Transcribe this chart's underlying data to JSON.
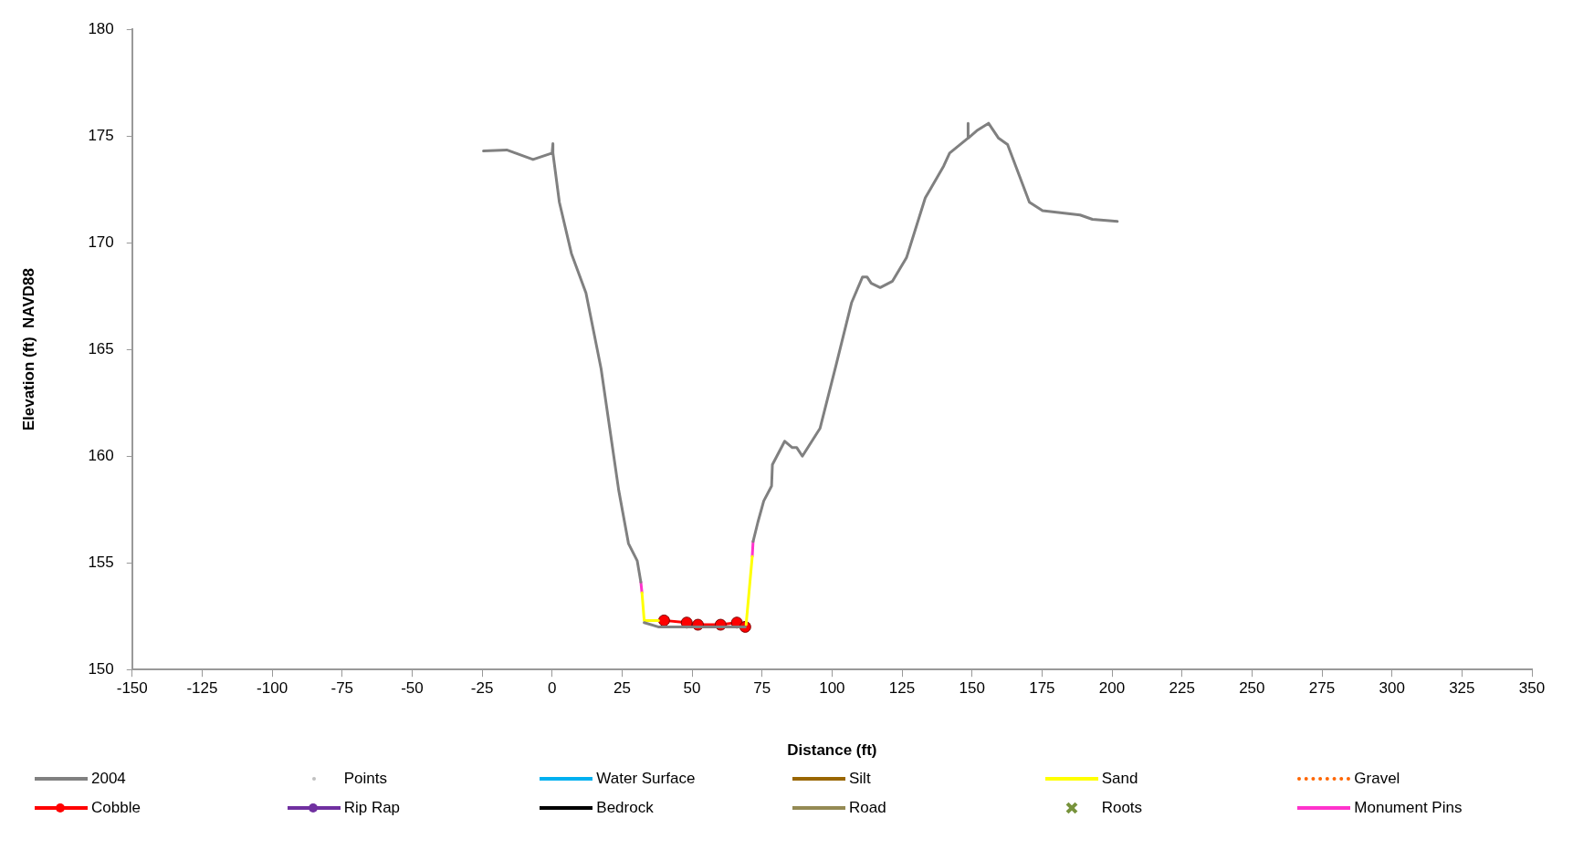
{
  "chart_data": {
    "type": "line",
    "xlabel": "Distance (ft)",
    "ylabel": "Elevation (ft)  NAVD88",
    "xlim": [
      -150,
      350
    ],
    "xticks": [
      -150,
      -125,
      -100,
      -75,
      -50,
      -25,
      0,
      25,
      50,
      75,
      100,
      125,
      150,
      175,
      200,
      225,
      250,
      275,
      300,
      325,
      350
    ],
    "ylim": [
      150,
      180
    ],
    "yticks": [
      150,
      155,
      160,
      165,
      170,
      175,
      180
    ],
    "grid": false,
    "legend": "bottom",
    "series": [
      {
        "name": "2004",
        "color": "#808080",
        "marker": "none",
        "x": [
          -24.5,
          -16.2,
          -6.8,
          0.0,
          0.3,
          0.3,
          2.6,
          6.9,
          12.1,
          17.5,
          23.8,
          27.3,
          30.4,
          31.7,
          null,
          32.9,
          37.9,
          58.3,
          69.0,
          null,
          71.8,
          73.5,
          75.6,
          78.4,
          78.7,
          83.1,
          85.8,
          87.4,
          89.4,
          95.7,
          101.5,
          107.0,
          110.9,
          112.5,
          114.0,
          117.2,
          121.6,
          126.6,
          133.3,
          139.9,
          142.0,
          148.5,
          148.5,
          148.7,
          151.7,
          155.9,
          159.5,
          162.7,
          170.5,
          175.2,
          188.6,
          193.0,
          201.9
        ],
        "values": [
          174.3,
          174.35,
          173.9,
          174.2,
          174.65,
          174.2,
          171.9,
          169.5,
          167.65,
          164.1,
          158.4,
          155.9,
          155.1,
          154.1,
          null,
          152.2,
          152.0,
          152.0,
          152.0,
          null,
          156.0,
          156.9,
          157.9,
          158.6,
          159.6,
          160.7,
          160.4,
          160.4,
          160.0,
          161.3,
          164.3,
          167.2,
          168.4,
          168.4,
          168.1,
          167.9,
          168.2,
          169.3,
          172.1,
          173.6,
          174.2,
          174.9,
          175.6,
          174.9,
          175.25,
          175.6,
          174.9,
          174.6,
          171.9,
          171.5,
          171.3,
          171.1,
          171.0
        ]
      },
      {
        "name": "Points",
        "color": "#c0c0c0",
        "marker": "circle",
        "line_style": "none"
      },
      {
        "name": "Water Surface",
        "color": "#00b0f0",
        "marker": "none"
      },
      {
        "name": "Silt",
        "color": "#996600",
        "marker": "none"
      },
      {
        "name": "Sand",
        "color": "#ffff00",
        "marker": "none",
        "x": [
          32.1,
          32.9,
          38.0,
          null,
          69.3,
          71.5
        ],
        "values": [
          153.6,
          152.3,
          152.3,
          null,
          152.1,
          155.3
        ]
      },
      {
        "name": "Gravel",
        "color": "#ff6600",
        "marker": "none",
        "line_style": "dotted"
      },
      {
        "name": "Cobble",
        "color": "#ff0000",
        "marker": "circle",
        "x": [
          40.0,
          48.1,
          52.1,
          60.2,
          66.0,
          69.0
        ],
        "values": [
          152.3,
          152.2,
          152.1,
          152.1,
          152.2,
          152.0
        ]
      },
      {
        "name": "Rip Rap",
        "color": "#7030a0",
        "marker": "circle"
      },
      {
        "name": "Bedrock",
        "color": "#000000",
        "marker": "none"
      },
      {
        "name": "Road",
        "color": "#948a54",
        "marker": "none"
      },
      {
        "name": "Roots",
        "color": "#77933c",
        "marker": "cross",
        "line_style": "none"
      },
      {
        "name": "Monument Pins",
        "color": "#ff33cc",
        "marker": "none",
        "x": [
          31.7,
          32.1,
          null,
          71.5,
          71.8
        ],
        "values": [
          154.1,
          153.6,
          null,
          155.3,
          156.0
        ]
      }
    ]
  }
}
